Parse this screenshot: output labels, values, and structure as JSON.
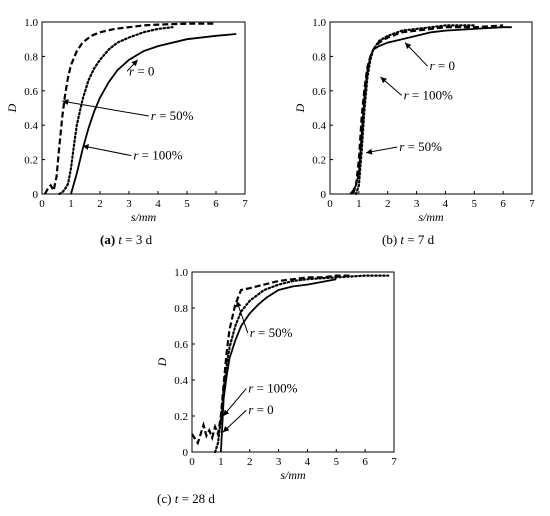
{
  "chart_data": [
    {
      "type": "line",
      "caption_tag": "(a)",
      "caption_var": "t",
      "caption_value": " = 3 d",
      "xlabel": "s/mm",
      "ylabel": "D",
      "xlim": [
        0,
        7
      ],
      "ylim": [
        0,
        1.0
      ],
      "xticks": [
        0,
        1,
        2,
        3,
        4,
        5,
        6,
        7
      ],
      "yticks": [
        0,
        0.2,
        0.4,
        0.6,
        0.8,
        1.0
      ],
      "ytick_labels": [
        "0",
        "0.2",
        "0.4",
        "0.6",
        "0.8",
        "1.0"
      ],
      "series": [
        {
          "name": "r = 0",
          "style": "solid",
          "x": [
            1.0,
            1.2,
            1.4,
            1.6,
            1.8,
            2.0,
            2.3,
            2.6,
            3.0,
            3.5,
            4.0,
            5.0,
            6.0,
            6.7
          ],
          "y": [
            0.0,
            0.12,
            0.26,
            0.38,
            0.48,
            0.56,
            0.65,
            0.72,
            0.78,
            0.83,
            0.86,
            0.9,
            0.92,
            0.93
          ]
        },
        {
          "name": "r = 50%",
          "style": "dashed",
          "x": [
            0.1,
            0.2,
            0.3,
            0.4,
            0.5,
            0.6,
            0.7,
            0.8,
            0.9,
            1.0,
            1.2,
            1.4,
            1.7,
            2.0,
            2.5,
            3.0,
            3.5,
            4.0,
            5.0,
            6.0
          ],
          "y": [
            0.0,
            0.03,
            0.05,
            0.02,
            0.1,
            0.28,
            0.45,
            0.58,
            0.68,
            0.75,
            0.83,
            0.88,
            0.92,
            0.94,
            0.96,
            0.97,
            0.98,
            0.985,
            0.99,
            0.99
          ]
        },
        {
          "name": "r = 100%",
          "style": "dotted",
          "x": [
            0.6,
            0.7,
            0.8,
            0.9,
            1.0,
            1.1,
            1.2,
            1.4,
            1.6,
            1.8,
            2.0,
            2.3,
            2.6,
            3.0,
            3.5,
            4.0,
            4.5
          ],
          "y": [
            0.0,
            0.01,
            0.03,
            0.06,
            0.15,
            0.28,
            0.4,
            0.55,
            0.66,
            0.73,
            0.78,
            0.84,
            0.88,
            0.91,
            0.94,
            0.96,
            0.97
          ]
        }
      ],
      "annotations": [
        {
          "text": "r = 0",
          "series": "r = 0",
          "x": 3.0,
          "y": 0.69,
          "ax": 3.3,
          "ay": 0.78
        },
        {
          "text": "r = 50%",
          "series": "r = 50%",
          "x": 3.75,
          "y": 0.43,
          "ax": 0.7,
          "ay": 0.54
        },
        {
          "text": "r = 100%",
          "series": "r = 100%",
          "x": 3.15,
          "y": 0.2,
          "ax": 1.4,
          "ay": 0.28
        }
      ]
    },
    {
      "type": "line",
      "caption_tag": "(b)",
      "caption_var": "t",
      "caption_value": " = 7 d",
      "xlabel": "s/mm",
      "ylabel": "D",
      "xlim": [
        0,
        7
      ],
      "ylim": [
        0,
        1.0
      ],
      "xticks": [
        0,
        1,
        2,
        3,
        4,
        5,
        6,
        7
      ],
      "yticks": [
        0,
        0.2,
        0.4,
        0.6,
        0.8,
        1.0
      ],
      "ytick_labels": [
        "0",
        "0.2",
        "0.4",
        "0.6",
        "0.8",
        "1.0"
      ],
      "series": [
        {
          "name": "r = 0",
          "style": "solid",
          "x": [
            0.7,
            0.8,
            0.9,
            1.0,
            1.1,
            1.2,
            1.3,
            1.4,
            1.5,
            1.7,
            2.0,
            2.5,
            3.0,
            3.5,
            4.0,
            5.0,
            6.0,
            6.3
          ],
          "y": [
            0.0,
            0.02,
            0.05,
            0.12,
            0.35,
            0.58,
            0.72,
            0.8,
            0.84,
            0.86,
            0.88,
            0.9,
            0.92,
            0.94,
            0.95,
            0.96,
            0.97,
            0.97
          ]
        },
        {
          "name": "r = 50%",
          "style": "dashed",
          "x": [
            0.8,
            0.9,
            1.0,
            1.1,
            1.2,
            1.3,
            1.4,
            1.5,
            1.7,
            2.0,
            2.5,
            3.0,
            3.5,
            4.0,
            5.0,
            6.0
          ],
          "y": [
            0.0,
            0.05,
            0.2,
            0.45,
            0.62,
            0.74,
            0.8,
            0.84,
            0.88,
            0.91,
            0.94,
            0.95,
            0.96,
            0.97,
            0.97,
            0.98
          ]
        },
        {
          "name": "r = 100%",
          "style": "dotted",
          "x": [
            0.9,
            1.0,
            1.1,
            1.2,
            1.3,
            1.4,
            1.5,
            1.7,
            2.0,
            2.5,
            3.0,
            3.5,
            4.0,
            5.0
          ],
          "y": [
            0.0,
            0.05,
            0.25,
            0.5,
            0.68,
            0.78,
            0.84,
            0.89,
            0.92,
            0.95,
            0.96,
            0.97,
            0.98,
            0.98
          ]
        }
      ],
      "annotations": [
        {
          "text": "r = 0",
          "series": "r = 0",
          "x": 3.45,
          "y": 0.72,
          "ax": 2.6,
          "ay": 0.88
        },
        {
          "text": "r = 100%",
          "series": "r = 100%",
          "x": 2.55,
          "y": 0.55,
          "ax": 1.75,
          "ay": 0.68
        },
        {
          "text": "r = 50%",
          "series": "r = 50%",
          "x": 2.4,
          "y": 0.25,
          "ax": 1.25,
          "ay": 0.24
        }
      ]
    },
    {
      "type": "line",
      "caption_tag": "(c)",
      "caption_var": "t",
      "caption_value": " = 28 d",
      "xlabel": "s/mm",
      "ylabel": "D",
      "xlim": [
        0,
        7
      ],
      "ylim": [
        0,
        1.0
      ],
      "xticks": [
        0,
        1,
        2,
        3,
        4,
        5,
        6,
        7
      ],
      "yticks": [
        0,
        0.2,
        0.4,
        0.6,
        0.8,
        1.0
      ],
      "ytick_labels": [
        "0",
        "0.2",
        "0.4",
        "0.6",
        "0.8",
        "1.0"
      ],
      "series": [
        {
          "name": "r = 0",
          "style": "solid",
          "x": [
            1.0,
            1.05,
            1.1,
            1.2,
            1.3,
            1.5,
            1.7,
            2.0,
            2.3,
            2.6,
            3.0,
            3.5,
            4.0,
            5.0
          ],
          "y": [
            0.0,
            0.15,
            0.3,
            0.42,
            0.52,
            0.62,
            0.7,
            0.77,
            0.82,
            0.86,
            0.9,
            0.92,
            0.93,
            0.96
          ]
        },
        {
          "name": "r = 50%",
          "style": "dashed",
          "x": [
            0.0,
            0.2,
            0.4,
            0.5,
            0.6,
            0.7,
            0.8,
            0.9,
            1.0,
            1.1,
            1.2,
            1.3,
            1.5,
            1.7,
            2.0,
            2.5,
            3.0,
            3.5,
            4.0,
            4.5,
            5.0,
            5.5
          ],
          "y": [
            0.1,
            0.05,
            0.15,
            0.09,
            0.12,
            0.08,
            0.14,
            0.1,
            0.2,
            0.38,
            0.55,
            0.68,
            0.82,
            0.9,
            0.91,
            0.93,
            0.95,
            0.96,
            0.97,
            0.97,
            0.98,
            0.98
          ]
        },
        {
          "name": "r = 100%",
          "style": "dotted",
          "x": [
            0.8,
            0.9,
            1.0,
            1.1,
            1.2,
            1.3,
            1.5,
            1.7,
            2.0,
            2.5,
            3.0,
            3.5,
            4.0,
            5.0,
            6.0,
            6.8
          ],
          "y": [
            0.0,
            0.05,
            0.18,
            0.35,
            0.48,
            0.58,
            0.7,
            0.78,
            0.84,
            0.9,
            0.93,
            0.95,
            0.96,
            0.97,
            0.98,
            0.98
          ]
        }
      ],
      "annotations": [
        {
          "text": "r = 50%",
          "series": "r = 50%",
          "x": 2.0,
          "y": 0.64,
          "ax": 1.55,
          "ay": 0.84
        },
        {
          "text": "r = 100%",
          "series": "r = 100%",
          "x": 1.95,
          "y": 0.33,
          "ax": 1.08,
          "ay": 0.2
        },
        {
          "text": "r = 0",
          "series": "r = 0",
          "x": 1.95,
          "y": 0.21,
          "ax": 1.07,
          "ay": 0.11
        }
      ]
    }
  ]
}
